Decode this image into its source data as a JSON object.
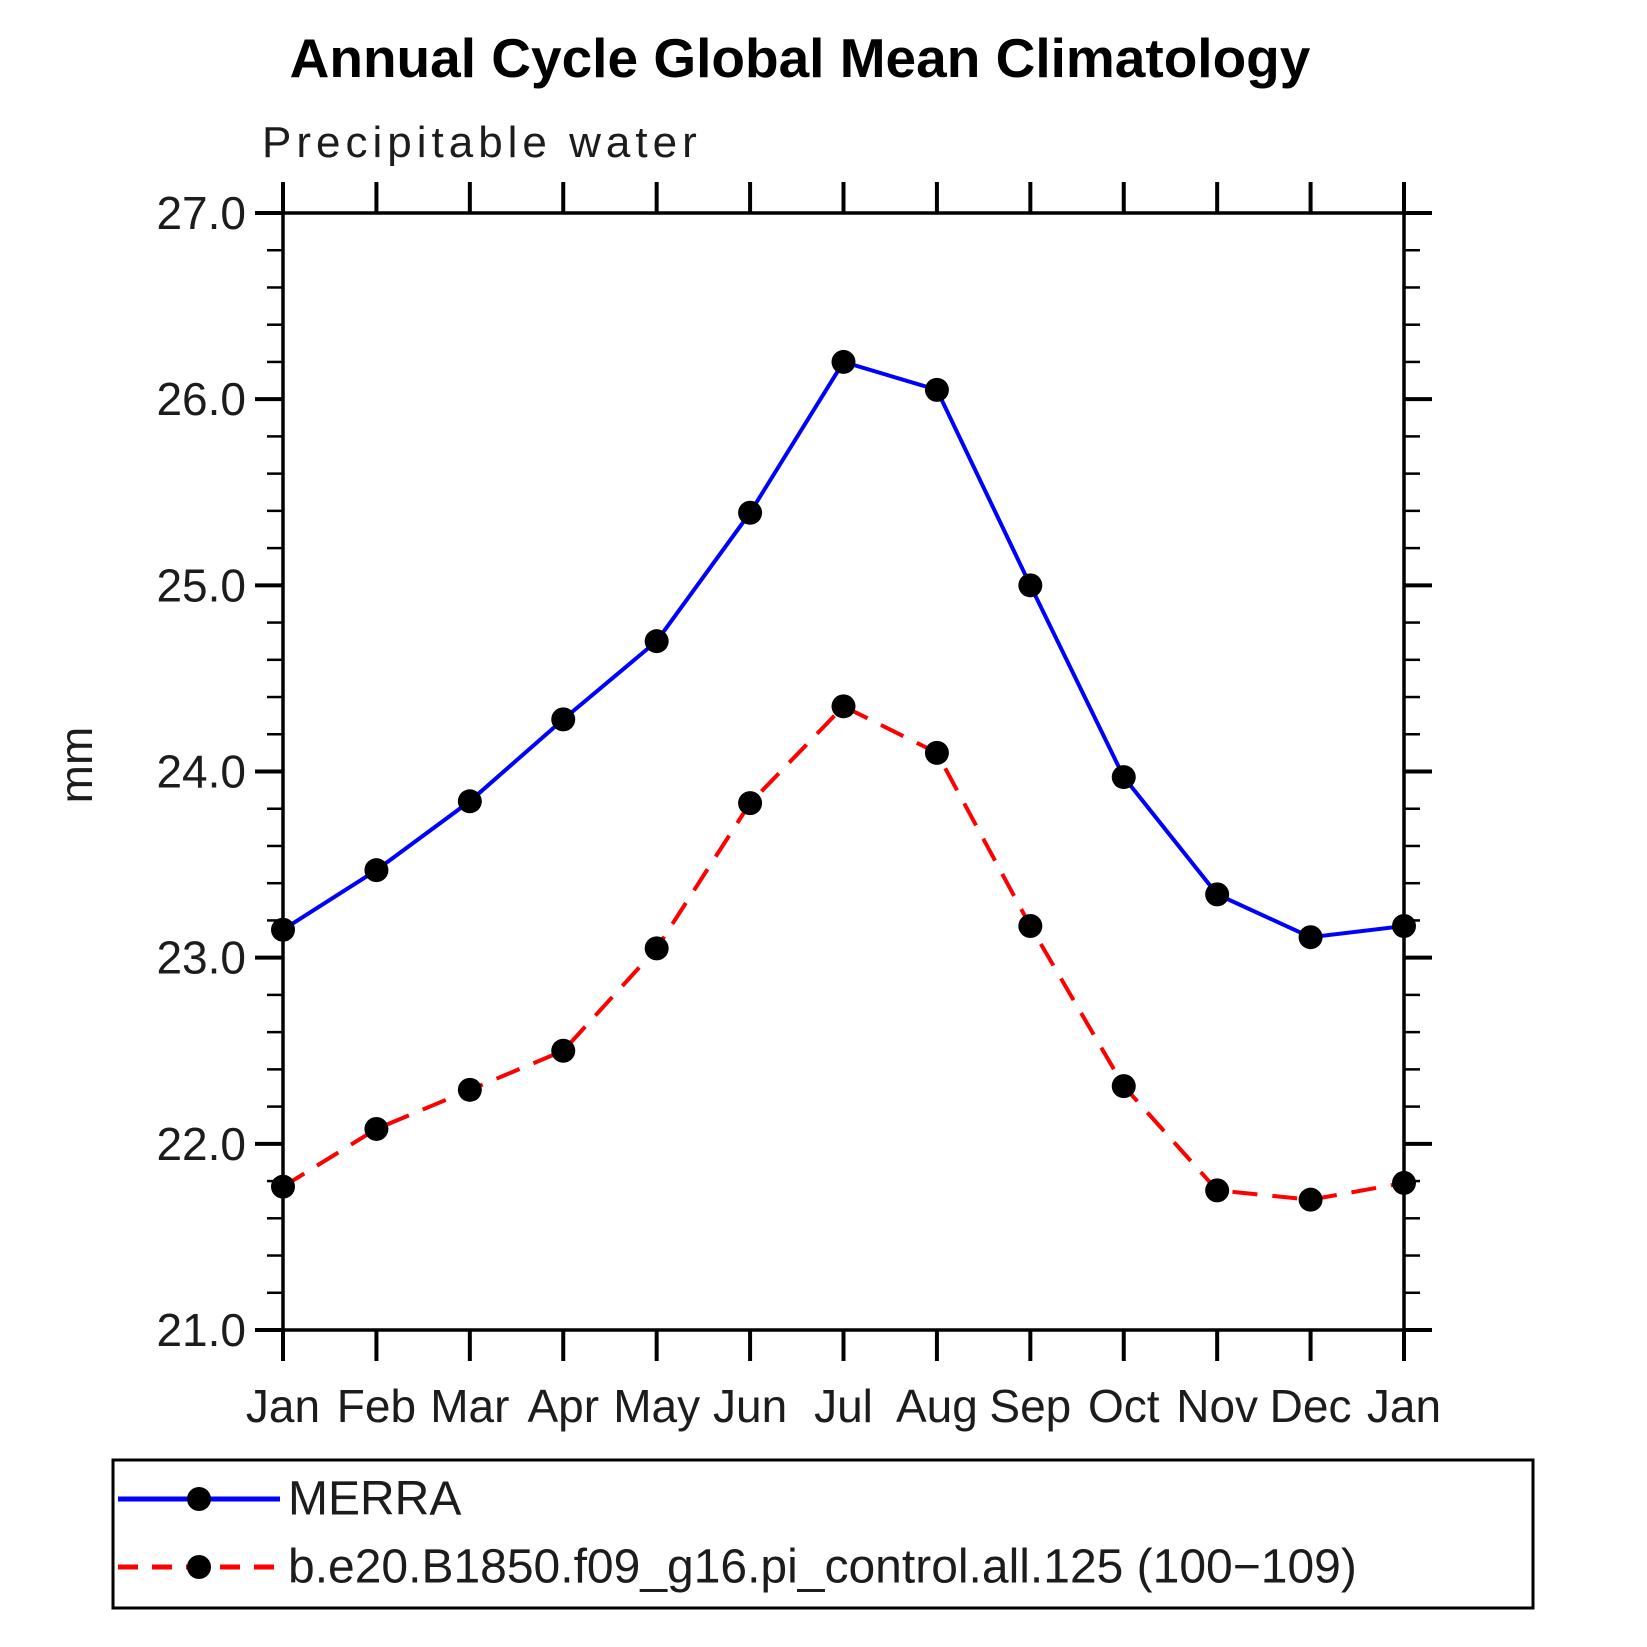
{
  "page": {
    "title": "Annual Cycle Global Mean Climatology",
    "subtitle": "Precipitable water"
  },
  "chart_data": {
    "type": "line",
    "title": "Annual Cycle Global Mean Climatology",
    "subtitle": "Precipitable water",
    "xlabel": "",
    "ylabel": "mm",
    "ylim": [
      21.0,
      27.0
    ],
    "ytick_major_interval": 1.0,
    "ytick_minor_interval": 0.2,
    "ytick_labels": [
      "21.0",
      "22.0",
      "23.0",
      "24.0",
      "25.0",
      "26.0",
      "27.0"
    ],
    "categories": [
      "Jan",
      "Feb",
      "Mar",
      "Apr",
      "May",
      "Jun",
      "Jul",
      "Aug",
      "Sep",
      "Oct",
      "Nov",
      "Dec",
      "Jan"
    ],
    "grid": false,
    "legend_position": "bottom-left-box",
    "frame_color": "#000000",
    "marker_color": "#000000",
    "series": [
      {
        "name": "MERRA",
        "color": "#0000ff",
        "style": "solid",
        "marker": "circle",
        "values": [
          23.15,
          23.47,
          23.84,
          24.28,
          24.7,
          25.39,
          26.2,
          26.05,
          25.0,
          23.97,
          23.34,
          23.11,
          23.17
        ]
      },
      {
        "name": "b.e20.B1850.f09_g16.pi_control.all.125 (100−109)",
        "color": "#ff0000",
        "style": "dashed",
        "marker": "circle",
        "values": [
          21.77,
          22.08,
          22.29,
          22.5,
          23.05,
          23.83,
          24.35,
          24.1,
          23.17,
          22.31,
          21.75,
          21.7,
          21.79
        ]
      }
    ]
  }
}
